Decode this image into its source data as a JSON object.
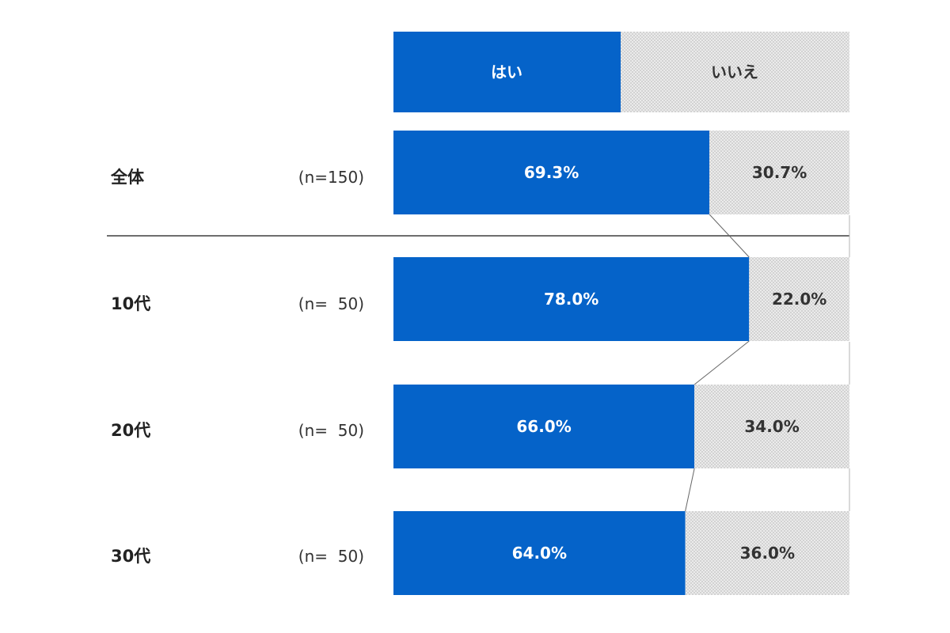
{
  "chart_data": {
    "type": "bar",
    "orientation": "horizontal",
    "stacked": true,
    "percent_stacked": true,
    "legend_position": "top",
    "grid": false,
    "xlim": [
      0,
      100
    ],
    "categories": [
      "全体",
      "10代",
      "20代",
      "30代"
    ],
    "sample_sizes": [
      "(n=150)",
      "(n=  50)",
      "(n=  50)",
      "(n=  50)"
    ],
    "series": [
      {
        "name": "はい",
        "values": [
          69.3,
          78.0,
          66.0,
          64.0
        ],
        "labels": [
          "69.3%",
          "78.0%",
          "66.0%",
          "64.0%"
        ]
      },
      {
        "name": "いいえ",
        "values": [
          30.7,
          22.0,
          34.0,
          36.0
        ],
        "labels": [
          "30.7%",
          "22.0%",
          "34.0%",
          "36.0%"
        ]
      }
    ],
    "colors": {
      "yes": "#0563c9",
      "no": "#e4e4e4"
    }
  }
}
